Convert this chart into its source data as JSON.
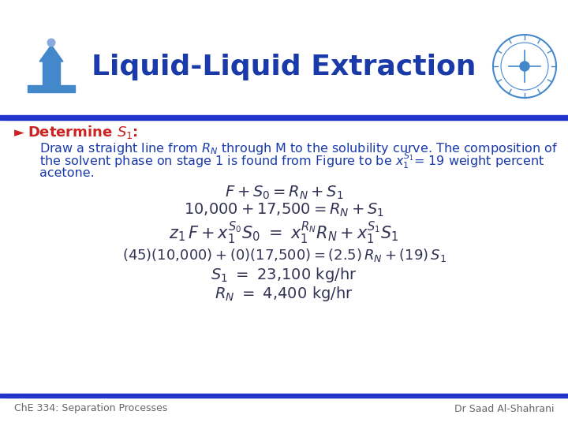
{
  "title": "Liquid-Liquid Extraction",
  "title_color": "#1a3aaa",
  "title_fontsize": 26,
  "bg_color": "#ffffff",
  "bar_color": "#2233cc",
  "bullet_color": "#cc2222",
  "body_color": "#1a3aaa",
  "body_fontsize": 11.5,
  "eq_color": "#333355",
  "eq_fontsize": 14,
  "footer_left": "ChE 334: Separation Processes",
  "footer_right": "Dr Saad Al-Shahrani",
  "footer_color": "#666666",
  "footer_fontsize": 9
}
